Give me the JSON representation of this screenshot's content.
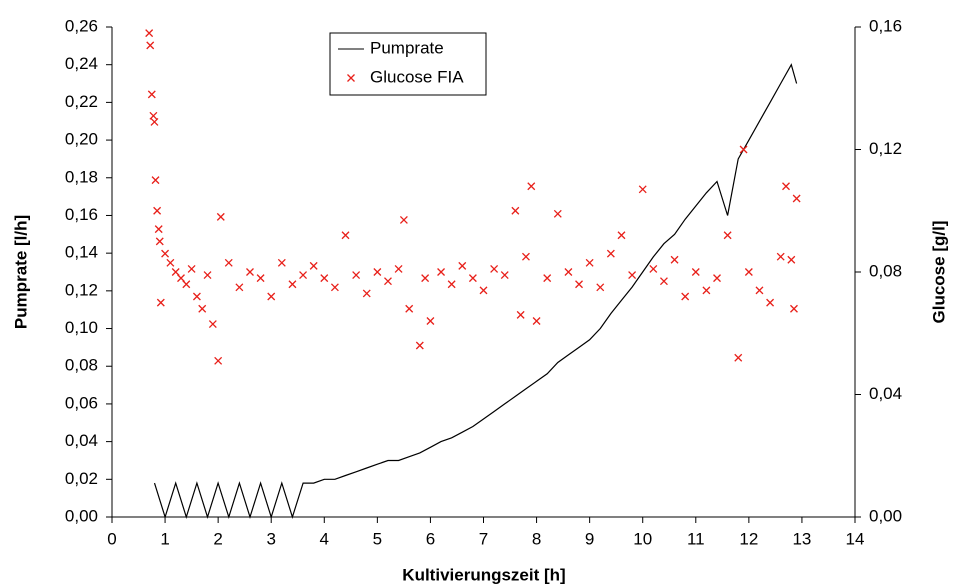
{
  "chart_data": {
    "type": "line-scatter",
    "xlabel": "Kultivierungszeit [h]",
    "ylabel": "Pumprate [l/h]",
    "y2label": "Glucose [g/l]",
    "xlim": [
      0,
      14
    ],
    "xticks": [
      0,
      1,
      2,
      3,
      4,
      5,
      6,
      7,
      8,
      9,
      10,
      11,
      12,
      13,
      14
    ],
    "ylim": [
      0,
      0.26
    ],
    "yticks": [
      {
        "value": 0,
        "label": "0,00"
      },
      {
        "value": 0.02,
        "label": "0,02"
      },
      {
        "value": 0.04,
        "label": "0,04"
      },
      {
        "value": 0.06,
        "label": "0,06"
      },
      {
        "value": 0.08,
        "label": "0,08"
      },
      {
        "value": 0.1,
        "label": "0,10"
      },
      {
        "value": 0.12,
        "label": "0,12"
      },
      {
        "value": 0.14,
        "label": "0,14"
      },
      {
        "value": 0.16,
        "label": "0,16"
      },
      {
        "value": 0.18,
        "label": "0,18"
      },
      {
        "value": 0.2,
        "label": "0,20"
      },
      {
        "value": 0.22,
        "label": "0,22"
      },
      {
        "value": 0.24,
        "label": "0,24"
      },
      {
        "value": 0.26,
        "label": "0,26"
      }
    ],
    "y2lim": [
      0,
      0.16
    ],
    "y2ticks": [
      {
        "value": 0,
        "label": "0,00"
      },
      {
        "value": 0.04,
        "label": "0,04"
      },
      {
        "value": 0.08,
        "label": "0,08"
      },
      {
        "value": 0.12,
        "label": "0,12"
      },
      {
        "value": 0.16,
        "label": "0,16"
      }
    ],
    "legend": "top-center",
    "series": [
      {
        "name": "Pumprate",
        "color": "#000000",
        "kind": "line",
        "x": [
          0.8,
          1.0,
          1.2,
          1.4,
          1.6,
          1.8,
          2.0,
          2.2,
          2.4,
          2.6,
          2.8,
          3.0,
          3.2,
          3.4,
          3.6,
          3.8,
          4.0,
          4.2,
          4.4,
          4.6,
          4.8,
          5.0,
          5.2,
          5.4,
          5.6,
          5.8,
          6.0,
          6.2,
          6.4,
          6.6,
          6.8,
          7.0,
          7.2,
          7.4,
          7.6,
          7.8,
          8.0,
          8.2,
          8.4,
          8.6,
          8.8,
          9.0,
          9.2,
          9.4,
          9.6,
          9.8,
          10.0,
          10.2,
          10.4,
          10.6,
          10.8,
          11.0,
          11.2,
          11.4,
          11.6,
          11.8,
          12.0,
          12.2,
          12.4,
          12.6,
          12.8,
          12.9
        ],
        "values": [
          0.018,
          0,
          0.018,
          0,
          0.018,
          0,
          0.018,
          0,
          0.018,
          0,
          0.018,
          0,
          0.018,
          0,
          0.018,
          0.018,
          0.02,
          0.02,
          0.022,
          0.024,
          0.026,
          0.028,
          0.03,
          0.03,
          0.032,
          0.034,
          0.037,
          0.04,
          0.042,
          0.045,
          0.048,
          0.052,
          0.056,
          0.06,
          0.064,
          0.068,
          0.072,
          0.076,
          0.082,
          0.086,
          0.09,
          0.094,
          0.1,
          0.108,
          0.115,
          0.122,
          0.13,
          0.138,
          0.145,
          0.15,
          0.158,
          0.165,
          0.172,
          0.178,
          0.16,
          0.19,
          0.2,
          0.21,
          0.22,
          0.23,
          0.24,
          0.23
        ]
      },
      {
        "name": "Glucose FIA",
        "color": "#e8201a",
        "kind": "scatter",
        "axis": "y2",
        "x": [
          0.7,
          0.72,
          0.75,
          0.78,
          0.8,
          0.82,
          0.85,
          0.88,
          0.9,
          0.92,
          1.0,
          1.1,
          1.2,
          1.3,
          1.4,
          1.5,
          1.6,
          1.7,
          1.8,
          1.9,
          2.0,
          2.05,
          2.2,
          2.4,
          2.6,
          2.8,
          3.0,
          3.2,
          3.4,
          3.6,
          3.8,
          4.0,
          4.2,
          4.4,
          4.6,
          4.8,
          5.0,
          5.2,
          5.4,
          5.5,
          5.6,
          5.8,
          5.9,
          6.0,
          6.2,
          6.4,
          6.6,
          6.8,
          7.0,
          7.2,
          7.4,
          7.6,
          7.7,
          7.8,
          7.9,
          8.0,
          8.2,
          8.4,
          8.6,
          8.8,
          9.0,
          9.2,
          9.4,
          9.6,
          9.8,
          10.0,
          10.2,
          10.4,
          10.6,
          10.8,
          11.0,
          11.2,
          11.4,
          11.6,
          11.8,
          11.9,
          12.0,
          12.2,
          12.4,
          12.6,
          12.7,
          12.8,
          12.85,
          12.9
        ],
        "values": [
          0.158,
          0.154,
          0.138,
          0.131,
          0.129,
          0.11,
          0.1,
          0.094,
          0.09,
          0.07,
          0.086,
          0.083,
          0.08,
          0.078,
          0.076,
          0.081,
          0.072,
          0.068,
          0.079,
          0.063,
          0.051,
          0.098,
          0.083,
          0.075,
          0.08,
          0.078,
          0.072,
          0.083,
          0.076,
          0.079,
          0.082,
          0.078,
          0.075,
          0.092,
          0.079,
          0.073,
          0.08,
          0.077,
          0.081,
          0.097,
          0.068,
          0.056,
          0.078,
          0.064,
          0.08,
          0.076,
          0.082,
          0.078,
          0.074,
          0.081,
          0.079,
          0.1,
          0.066,
          0.085,
          0.108,
          0.064,
          0.078,
          0.099,
          0.08,
          0.076,
          0.083,
          0.075,
          0.086,
          0.092,
          0.079,
          0.107,
          0.081,
          0.077,
          0.084,
          0.072,
          0.08,
          0.074,
          0.078,
          0.092,
          0.052,
          0.12,
          0.08,
          0.074,
          0.07,
          0.085,
          0.108,
          0.084,
          0.068,
          0.104
        ]
      }
    ]
  }
}
